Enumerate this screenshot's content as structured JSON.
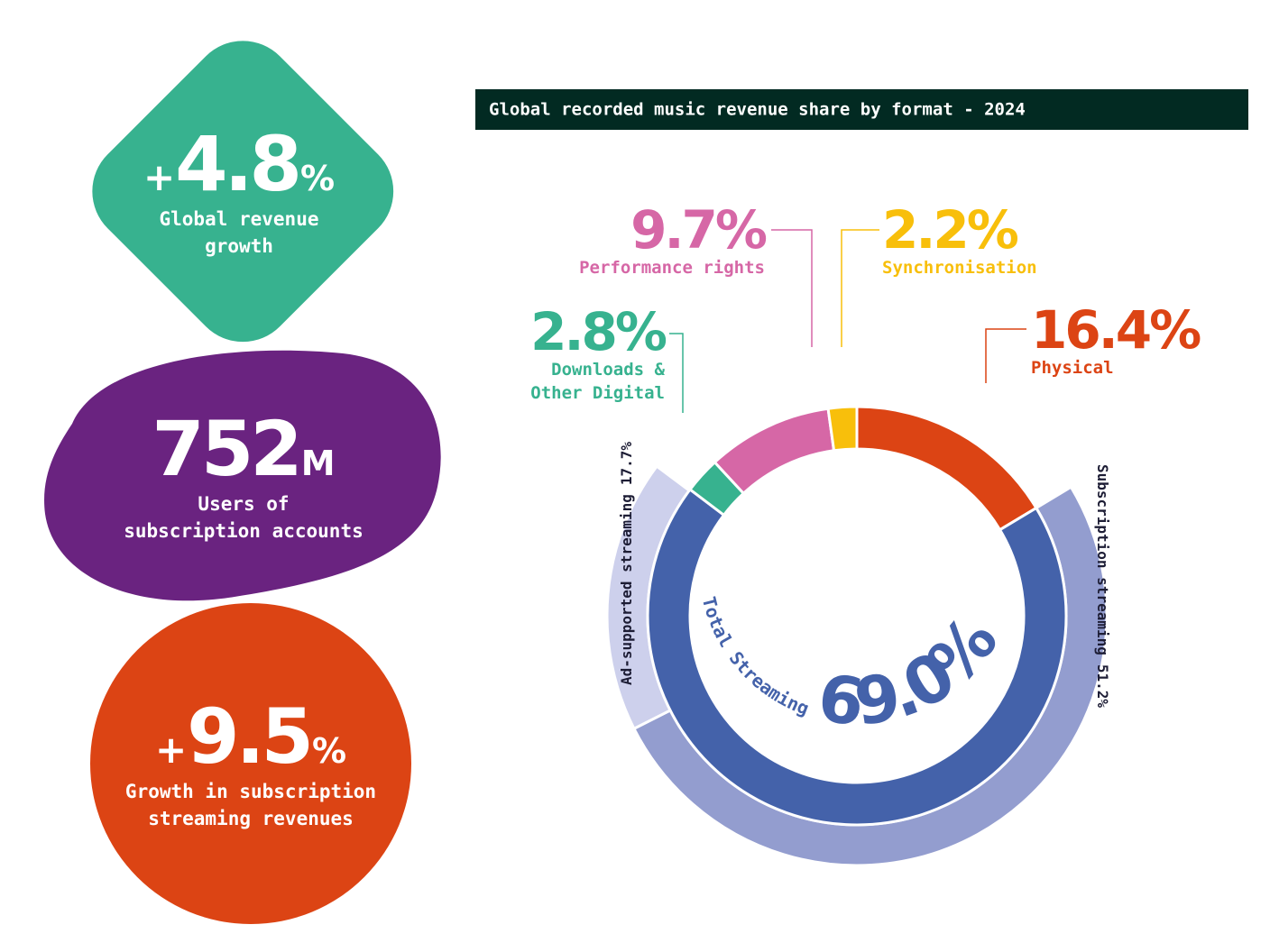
{
  "stats": [
    {
      "prefix": "+",
      "number": 4.8,
      "unit": "%",
      "label_lines": [
        "Global revenue",
        "growth"
      ]
    },
    {
      "number": 752,
      "unit": "M",
      "label_lines": [
        "Users of",
        "subscription accounts"
      ]
    },
    {
      "prefix": "+",
      "number": 9.5,
      "unit": "%",
      "label_lines": [
        "Growth in subscription",
        "streaming revenues"
      ]
    }
  ],
  "chart_data": {
    "type": "donut",
    "title": "Global recorded music revenue share by format - 2024",
    "categories": [
      "Physical",
      "Total Streaming",
      "Downloads & Other Digital",
      "Performance rights",
      "Synchronisation"
    ],
    "values": [
      16.4,
      69.0,
      2.8,
      9.7,
      2.2
    ],
    "value_labels": [
      "16.4%",
      "69.0%",
      "2.8%",
      "9.7%",
      "2.2%"
    ],
    "colors": [
      "#dc4414",
      "#4462aa",
      "#37b28f",
      "#d667a6",
      "#f8bf0b"
    ],
    "outer_ring": {
      "categories": [
        "Subscription streaming",
        "Ad-supported streaming"
      ],
      "values": [
        51.2,
        17.7
      ],
      "value_labels": [
        "51.2%",
        "17.7%"
      ],
      "colors": [
        "#939dcf",
        "#cdd0ec"
      ]
    }
  }
}
